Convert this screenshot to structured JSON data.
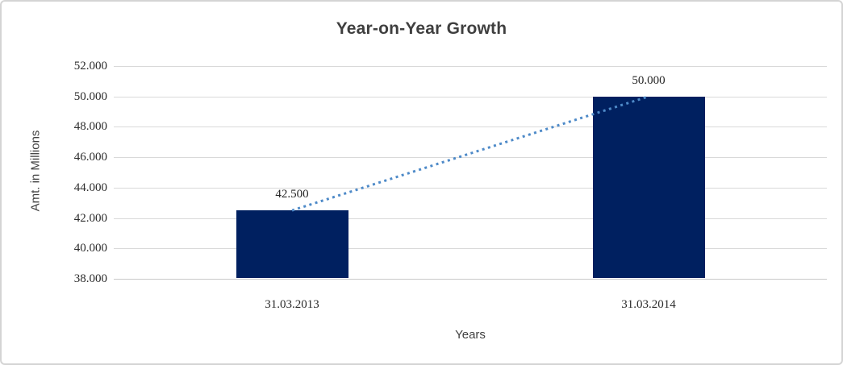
{
  "chart_data": {
    "type": "bar",
    "title": "Year-on-Year Growth",
    "xlabel": "Years",
    "ylabel": "Amt. in Millions",
    "categories": [
      "31.03.2013",
      "31.03.2014"
    ],
    "values": [
      42500,
      50000
    ],
    "data_labels": [
      "42.500",
      "50.000"
    ],
    "ylim": [
      38000,
      52000
    ],
    "ytick_step": 2000,
    "yticks": [
      {
        "value": 38000,
        "label": "38.000"
      },
      {
        "value": 40000,
        "label": "40.000"
      },
      {
        "value": 42000,
        "label": "42.000"
      },
      {
        "value": 44000,
        "label": "44.000"
      },
      {
        "value": 46000,
        "label": "46.000"
      },
      {
        "value": 48000,
        "label": "48.000"
      },
      {
        "value": 50000,
        "label": "50.000"
      },
      {
        "value": 52000,
        "label": "52.000"
      }
    ],
    "grid": true,
    "legend": false,
    "bar_color": "#002060",
    "trendline": {
      "style": "dotted",
      "color": "#4e8ac8",
      "connects": [
        42500,
        50000
      ]
    }
  },
  "colors": {
    "gridline": "#d9d9d9",
    "axis_line": "#c9c9c9",
    "frame_border": "#d4d4d4",
    "title_text": "#3f3f3f",
    "tick_text": "#2b2b2b"
  }
}
